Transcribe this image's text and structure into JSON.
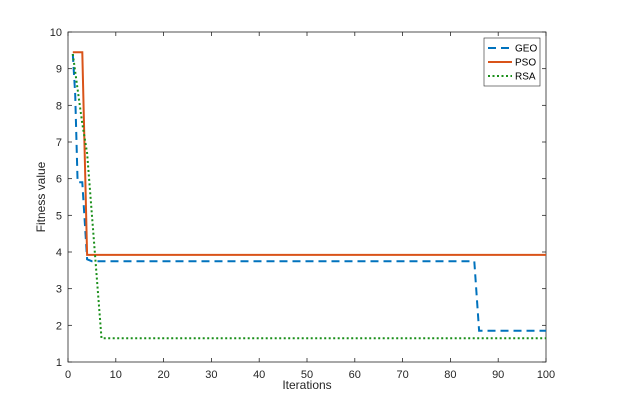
{
  "chart_data": {
    "type": "line",
    "title": "",
    "xlabel": "Iterations",
    "ylabel": "Fitness value",
    "xlim": [
      0,
      100
    ],
    "ylim": [
      1,
      10
    ],
    "xticks": [
      0,
      10,
      20,
      30,
      40,
      50,
      60,
      70,
      80,
      90,
      100
    ],
    "yticks": [
      1,
      2,
      3,
      4,
      5,
      6,
      7,
      8,
      9,
      10
    ],
    "grid": false,
    "legend_position": "top-right",
    "series": [
      {
        "name": "GEO",
        "color": "#0072BD",
        "style": "dashed",
        "points": [
          [
            1,
            9.4
          ],
          [
            1.5,
            8.3
          ],
          [
            2,
            5.9
          ],
          [
            3,
            5.9
          ],
          [
            4,
            3.8
          ],
          [
            5,
            3.75
          ],
          [
            85,
            3.75
          ],
          [
            86,
            1.85
          ],
          [
            100,
            1.85
          ]
        ]
      },
      {
        "name": "PSO",
        "color": "#D95319",
        "style": "solid",
        "points": [
          [
            1,
            9.45
          ],
          [
            3,
            9.45
          ],
          [
            4,
            3.92
          ],
          [
            100,
            3.92
          ]
        ]
      },
      {
        "name": "RSA",
        "color": "#1A8F1A",
        "style": "dotted",
        "points": [
          [
            1,
            9.4
          ],
          [
            3,
            7.5
          ],
          [
            4,
            6.7
          ],
          [
            7,
            1.65
          ],
          [
            100,
            1.65
          ]
        ]
      }
    ]
  }
}
